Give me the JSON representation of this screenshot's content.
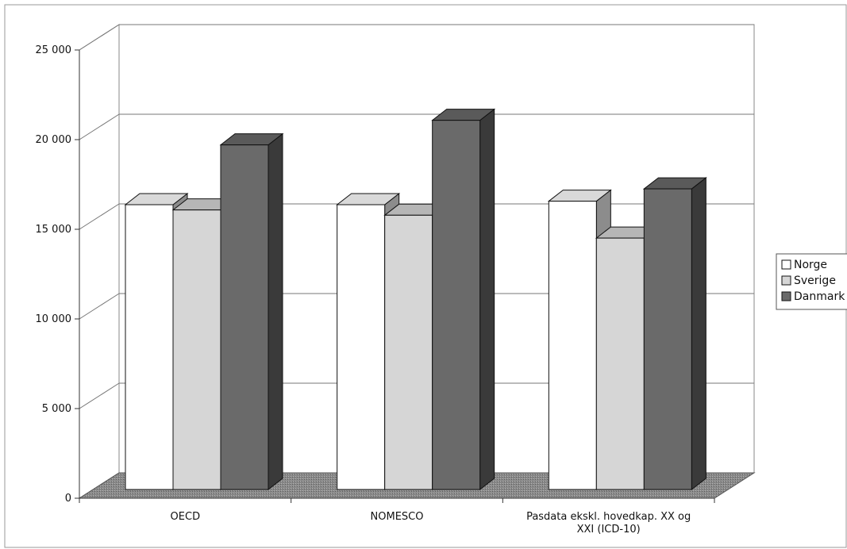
{
  "chart_data": {
    "type": "bar",
    "title": "",
    "xlabel": "",
    "ylabel": "",
    "ylim": [
      0,
      25000
    ],
    "yticks": [
      0,
      5000,
      10000,
      15000,
      20000,
      25000
    ],
    "ytick_labels": [
      "0",
      "5 000",
      "10 000",
      "15 000",
      "20 000",
      "25 000"
    ],
    "categories": [
      [
        "OECD"
      ],
      [
        "NOMESCO"
      ],
      [
        "Pasdata ekskl. hovedkap. XX og",
        "XXI (ICD-10)"
      ]
    ],
    "series": [
      {
        "name": "Norge",
        "values": [
          16200,
          16200,
          16400
        ],
        "color": "#ffffff"
      },
      {
        "name": "Sverige",
        "values": [
          15900,
          15600,
          14300
        ],
        "color": "#d6d6d6"
      },
      {
        "name": "Danmark",
        "values": [
          19600,
          21000,
          17100
        ],
        "color": "#6a6a6a"
      }
    ],
    "legend_position": "right",
    "grid": true,
    "style": "3d-clustered-column"
  }
}
